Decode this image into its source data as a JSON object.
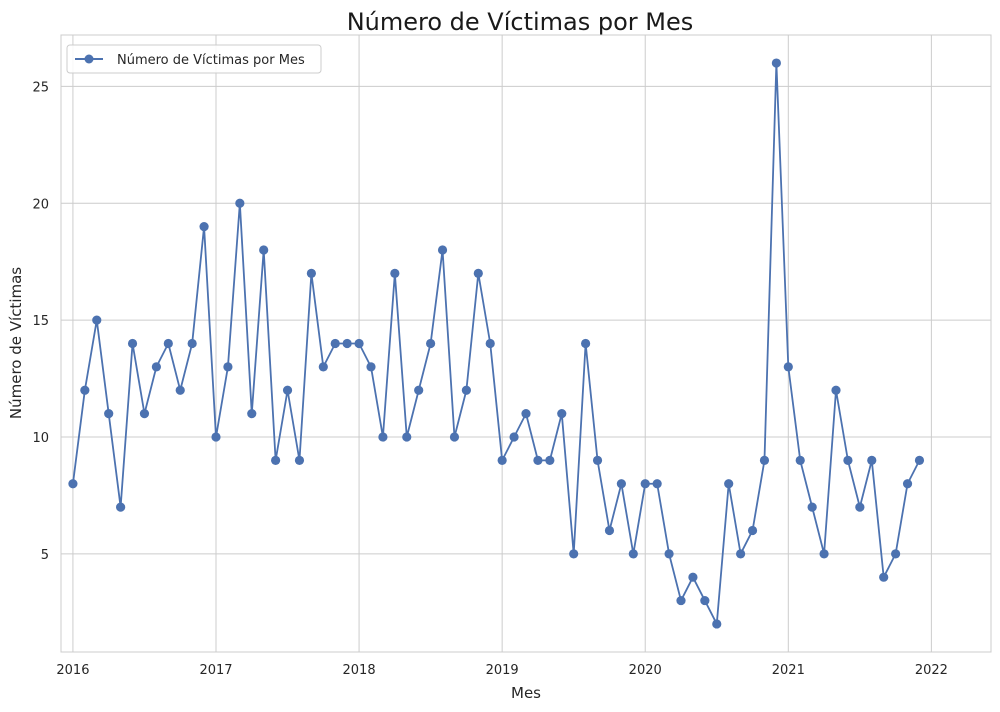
{
  "chart_data": {
    "type": "line",
    "title": "Número de Víctimas por Mes",
    "xlabel": "Mes",
    "ylabel": "Número de Víctimas",
    "x_ticks": [
      "2016",
      "2017",
      "2018",
      "2019",
      "2020",
      "2021",
      "2022"
    ],
    "y_ticks": [
      5,
      10,
      15,
      20,
      25
    ],
    "xlim": [
      "2015-12",
      "2022-06"
    ],
    "ylim": [
      0.8,
      27.2
    ],
    "grid": true,
    "legend_position": "top-left",
    "series": [
      {
        "name": "Número de Víctimas por Mes",
        "color": "#4c72b0",
        "marker": "circle",
        "x": [
          "2016-01",
          "2016-02",
          "2016-03",
          "2016-04",
          "2016-05",
          "2016-06",
          "2016-07",
          "2016-08",
          "2016-09",
          "2016-10",
          "2016-11",
          "2016-12",
          "2017-01",
          "2017-02",
          "2017-03",
          "2017-04",
          "2017-05",
          "2017-06",
          "2017-07",
          "2017-08",
          "2017-09",
          "2017-10",
          "2017-11",
          "2017-12",
          "2018-01",
          "2018-02",
          "2018-03",
          "2018-04",
          "2018-05",
          "2018-06",
          "2018-07",
          "2018-08",
          "2018-09",
          "2018-10",
          "2018-11",
          "2018-12",
          "2019-01",
          "2019-02",
          "2019-03",
          "2019-04",
          "2019-05",
          "2019-06",
          "2019-07",
          "2019-08",
          "2019-09",
          "2019-10",
          "2019-11",
          "2019-12",
          "2020-01",
          "2020-02",
          "2020-03",
          "2020-04",
          "2020-05",
          "2020-06",
          "2020-07",
          "2020-08",
          "2020-09",
          "2020-10",
          "2020-11",
          "2020-12",
          "2021-01",
          "2021-02",
          "2021-03",
          "2021-04",
          "2021-05",
          "2021-06",
          "2021-07",
          "2021-08",
          "2021-09",
          "2021-10",
          "2021-11",
          "2021-12"
        ],
        "values": [
          8,
          12,
          15,
          11,
          7,
          14,
          11,
          13,
          14,
          12,
          14,
          19,
          10,
          13,
          20,
          11,
          18,
          9,
          12,
          9,
          17,
          13,
          14,
          14,
          14,
          13,
          10,
          17,
          10,
          12,
          14,
          18,
          10,
          12,
          17,
          14,
          9,
          10,
          11,
          9,
          9,
          11,
          5,
          14,
          9,
          6,
          8,
          5,
          8,
          8,
          5,
          3,
          4,
          3,
          2,
          8,
          5,
          6,
          9,
          26,
          13,
          9,
          7,
          5,
          12,
          9,
          7,
          9,
          4,
          5,
          8,
          9
        ]
      }
    ]
  }
}
